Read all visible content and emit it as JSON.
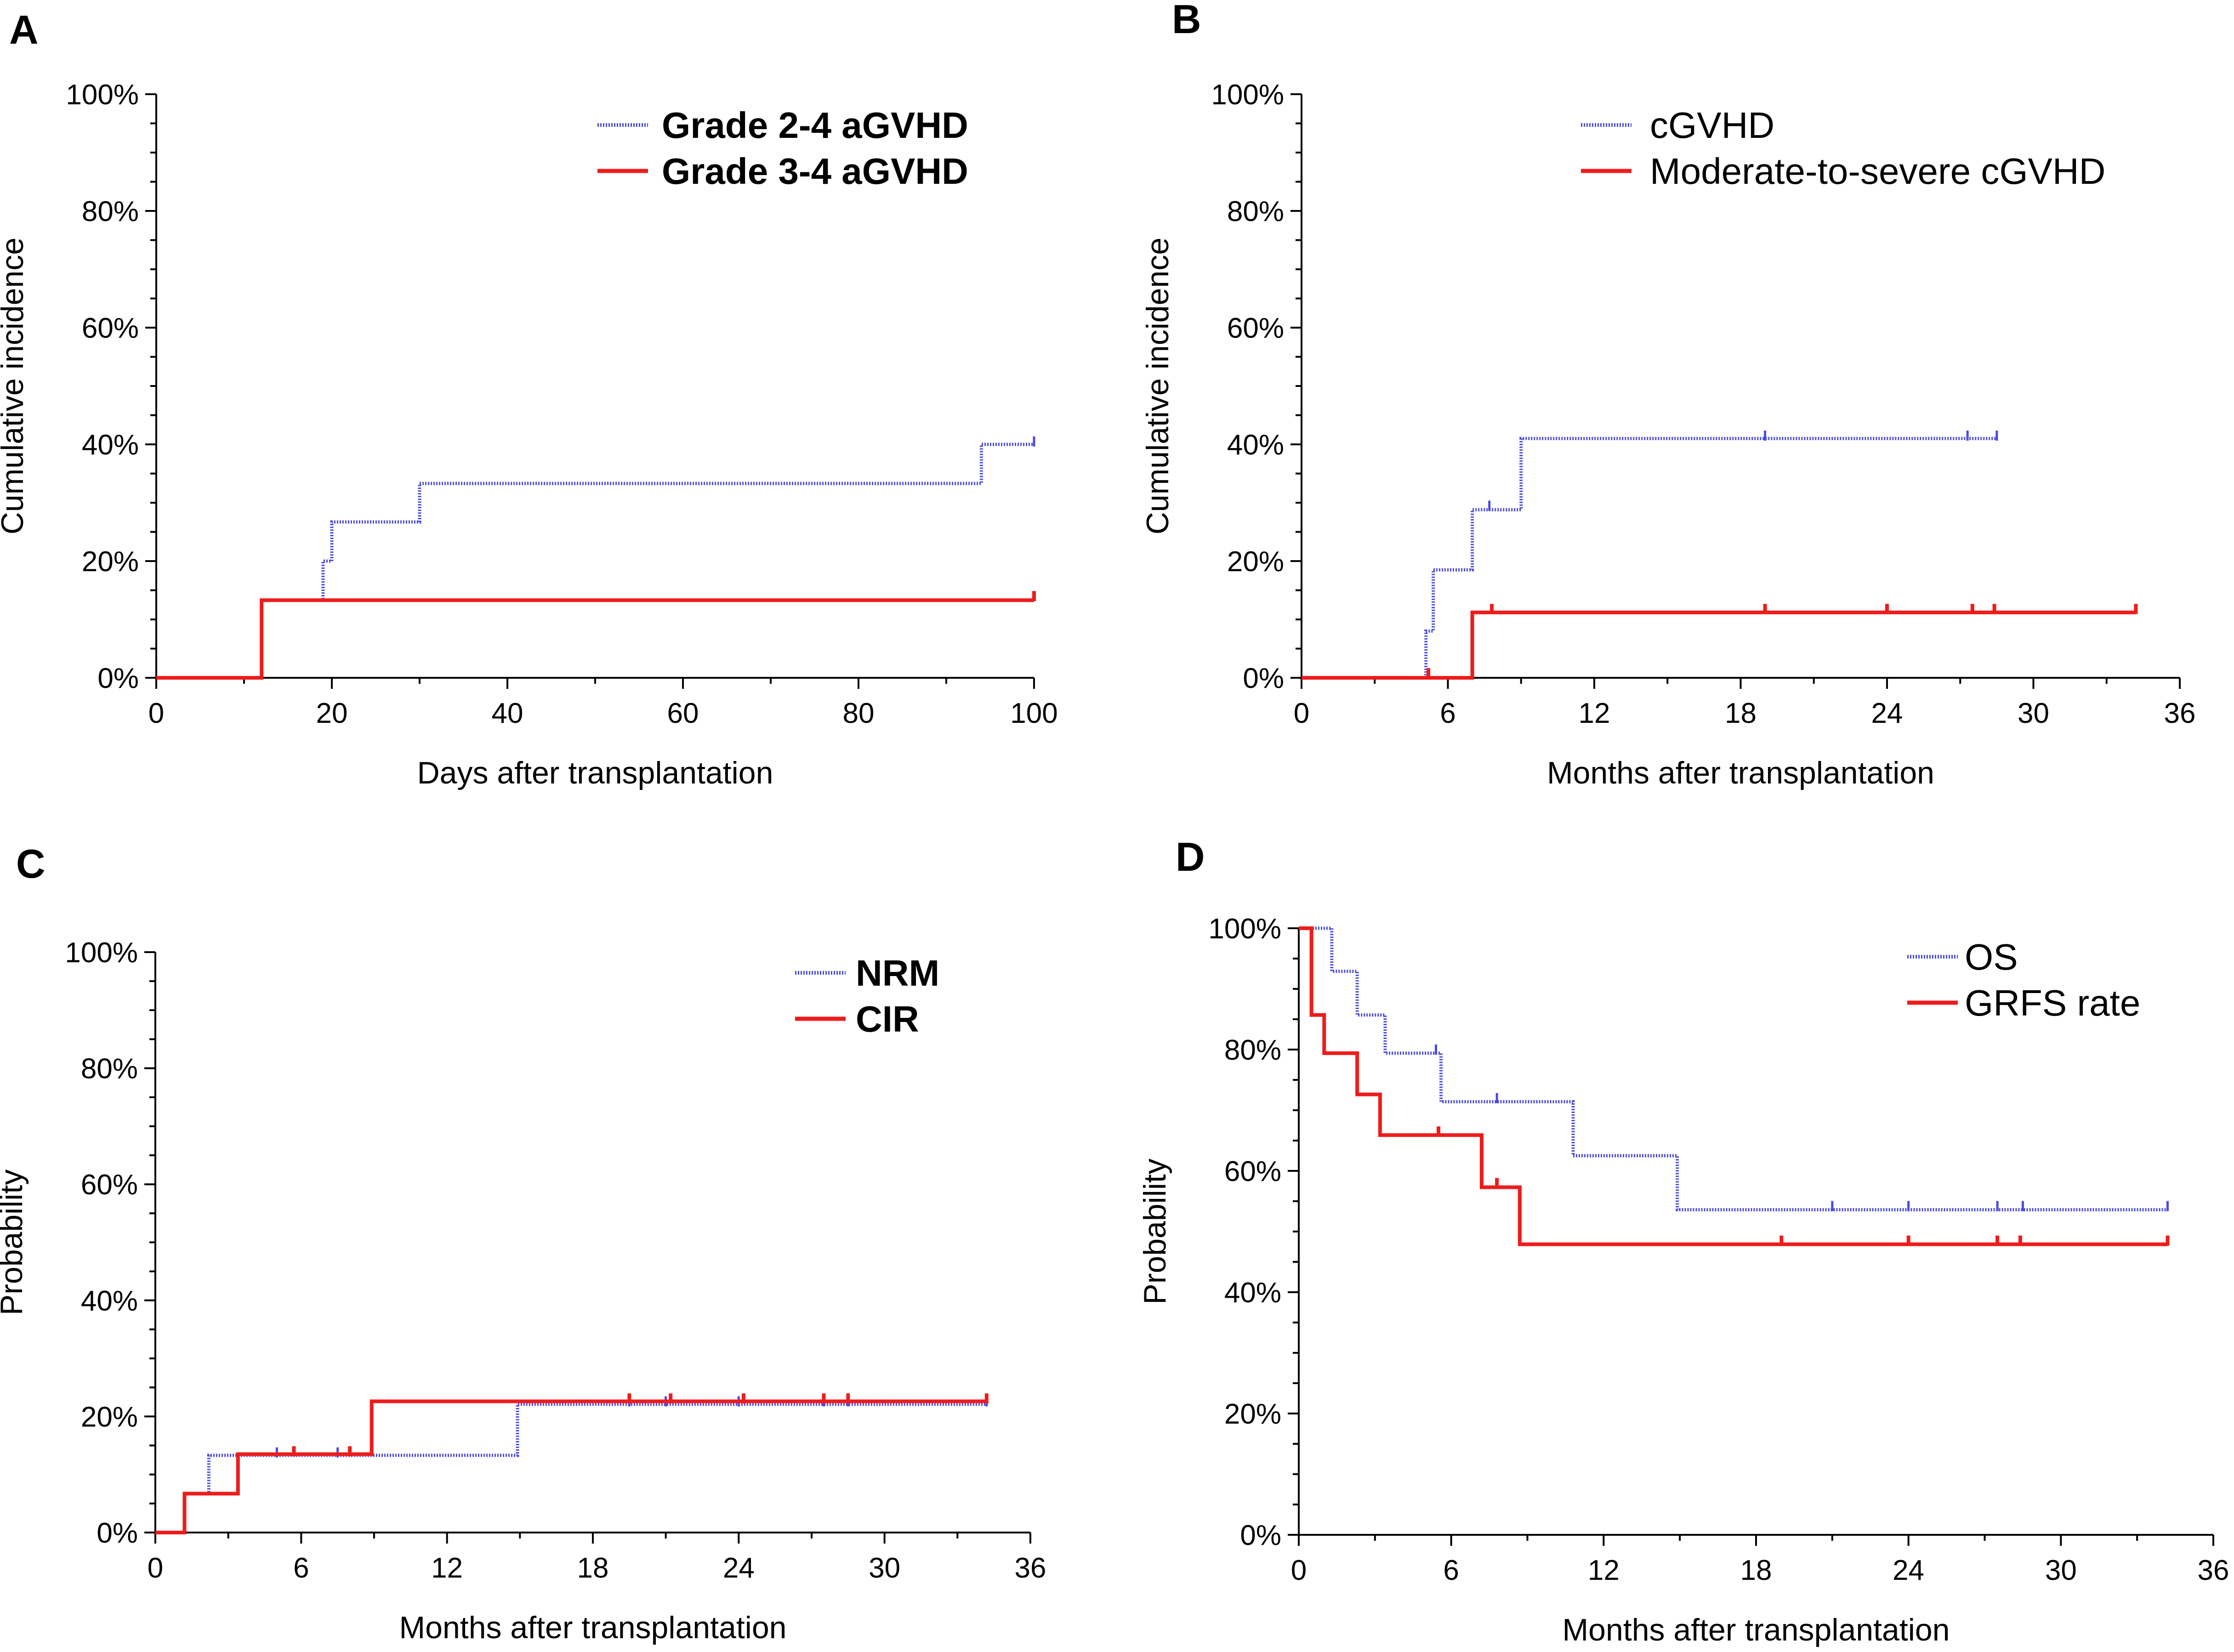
{
  "colors": {
    "blue": "#4a4ae0",
    "red": "#ee1c1c",
    "axis": "#000000"
  },
  "chart_data": [
    {
      "panel": "A",
      "type": "line",
      "step": true,
      "xlabel": "Days after transplantation",
      "ylabel": "Cumulative incidence",
      "xlim": [
        0,
        100
      ],
      "xticks": [
        0,
        20,
        40,
        60,
        80,
        100
      ],
      "xtick_labels": [
        "0",
        "20",
        "40",
        "60",
        "80",
        "100"
      ],
      "ylim": [
        0,
        100
      ],
      "yticks": [
        0,
        20,
        40,
        60,
        80,
        100
      ],
      "ytick_labels": [
        "0%",
        "20%",
        "40%",
        "60%",
        "80%",
        "100%"
      ],
      "legend_bold": true,
      "series": [
        {
          "name": "Grade 2-4 aGVHD",
          "style": "dotted",
          "color": "blue",
          "points": [
            [
              0,
              0
            ],
            [
              12,
              13.3
            ],
            [
              19,
              20
            ],
            [
              20,
              26.7
            ],
            [
              30,
              33.3
            ],
            [
              94,
              40
            ],
            [
              100,
              40
            ]
          ],
          "censor": [
            [
              100,
              40.5
            ]
          ]
        },
        {
          "name": "Grade 3-4 aGVHD",
          "style": "solid",
          "color": "red",
          "points": [
            [
              0,
              0
            ],
            [
              12,
              13.3
            ],
            [
              100,
              13.3
            ]
          ],
          "censor": [
            [
              100,
              14
            ]
          ]
        }
      ]
    },
    {
      "panel": "B",
      "type": "line",
      "step": true,
      "xlabel": "Months after transplantation",
      "ylabel": "Cumulative incidence",
      "xlim": [
        0,
        36
      ],
      "xticks": [
        0,
        6,
        12,
        18,
        24,
        30,
        36
      ],
      "xtick_labels": [
        "0",
        "6",
        "12",
        "18",
        "24",
        "30",
        "36"
      ],
      "ylim": [
        0,
        100
      ],
      "yticks": [
        0,
        20,
        40,
        60,
        80,
        100
      ],
      "ytick_labels": [
        "0%",
        "20%",
        "40%",
        "60%",
        "80%",
        "100%"
      ],
      "legend_bold": false,
      "series": [
        {
          "name": "cGVHD",
          "style": "dotted",
          "color": "blue",
          "points": [
            [
              0,
              0
            ],
            [
              5.1,
              8
            ],
            [
              5.4,
              18.5
            ],
            [
              7.0,
              28.8
            ],
            [
              9.0,
              41
            ],
            [
              28.5,
              41
            ]
          ],
          "censor": [
            [
              7.7,
              29.5
            ],
            [
              19,
              41.5
            ],
            [
              27.3,
              41.5
            ],
            [
              28.5,
              41.5
            ]
          ]
        },
        {
          "name": "Moderate-to-severe cGVHD",
          "style": "solid",
          "color": "red",
          "points": [
            [
              0,
              0
            ],
            [
              7.0,
              11.2
            ],
            [
              34.2,
              11.2
            ]
          ],
          "censor": [
            [
              5.2,
              0.8
            ],
            [
              7.8,
              11.8
            ],
            [
              19,
              11.8
            ],
            [
              24,
              11.8
            ],
            [
              27.5,
              11.8
            ],
            [
              28.4,
              11.8
            ],
            [
              34.2,
              11.8
            ]
          ]
        }
      ]
    },
    {
      "panel": "C",
      "type": "line",
      "step": true,
      "xlabel": "Months after transplantation",
      "ylabel": "Probability",
      "xlim": [
        0,
        36
      ],
      "xticks": [
        0,
        6,
        12,
        18,
        24,
        30,
        36
      ],
      "xtick_labels": [
        "0",
        "6",
        "12",
        "18",
        "24",
        "30",
        "36"
      ],
      "ylim": [
        0,
        100
      ],
      "yticks": [
        0,
        20,
        40,
        60,
        80,
        100
      ],
      "ytick_labels": [
        "0%",
        "20%",
        "40%",
        "60%",
        "80%",
        "100%"
      ],
      "legend_bold": true,
      "series": [
        {
          "name": "NRM",
          "style": "dotted",
          "color": "blue",
          "points": [
            [
              0,
              0
            ],
            [
              1.2,
              6.7
            ],
            [
              2.2,
              13.3
            ],
            [
              14.9,
              22.1
            ],
            [
              34.2,
              22.1
            ]
          ],
          "censor": [
            [
              5,
              13.8
            ],
            [
              7.5,
              13.8
            ],
            [
              19.5,
              22.6
            ],
            [
              21,
              22.6
            ],
            [
              24,
              22.6
            ],
            [
              27.5,
              22.6
            ],
            [
              28.5,
              22.6
            ],
            [
              34.2,
              22.6
            ]
          ]
        },
        {
          "name": "CIR",
          "style": "solid",
          "color": "red",
          "points": [
            [
              0,
              0
            ],
            [
              1.2,
              6.7
            ],
            [
              3.4,
              13.5
            ],
            [
              8.9,
              22.6
            ],
            [
              34.2,
              22.6
            ]
          ],
          "censor": [
            [
              5.7,
              14
            ],
            [
              8,
              14
            ],
            [
              19.5,
              23.1
            ],
            [
              21.2,
              23.1
            ],
            [
              24.2,
              23.1
            ],
            [
              27.5,
              23.1
            ],
            [
              28.5,
              23.1
            ],
            [
              34.2,
              23.1
            ]
          ]
        }
      ]
    },
    {
      "panel": "D",
      "type": "line",
      "step": true,
      "xlabel": "Months after transplantation",
      "ylabel": "Probability",
      "xlim": [
        0,
        36
      ],
      "xticks": [
        0,
        6,
        12,
        18,
        24,
        30,
        36
      ],
      "xtick_labels": [
        "0",
        "6",
        "12",
        "18",
        "24",
        "30",
        "36"
      ],
      "ylim": [
        0,
        100
      ],
      "yticks": [
        0,
        20,
        40,
        60,
        80,
        100
      ],
      "ytick_labels": [
        "0%",
        "20%",
        "40%",
        "60%",
        "80%",
        "100%"
      ],
      "legend_bold": false,
      "series": [
        {
          "name": "OS",
          "style": "dotted",
          "color": "blue",
          "points": [
            [
              0,
              100
            ],
            [
              1.3,
              92.9
            ],
            [
              2.3,
              85.7
            ],
            [
              3.4,
              79.4
            ],
            [
              5.6,
              71.4
            ],
            [
              10.8,
              62.5
            ],
            [
              14.9,
              53.6
            ],
            [
              34.2,
              53.6
            ]
          ],
          "censor": [
            [
              5.4,
              80
            ],
            [
              7.8,
              72
            ],
            [
              21,
              54.2
            ],
            [
              24,
              54.2
            ],
            [
              27.5,
              54.2
            ],
            [
              28.5,
              54.2
            ],
            [
              34.2,
              54.2
            ]
          ]
        },
        {
          "name": "GRFS rate",
          "style": "solid",
          "color": "red",
          "points": [
            [
              0,
              100
            ],
            [
              0.5,
              85.7
            ],
            [
              1.0,
              79.4
            ],
            [
              2.3,
              72.6
            ],
            [
              3.2,
              65.9
            ],
            [
              7.2,
              57.3
            ],
            [
              8.7,
              47.9
            ],
            [
              34.2,
              47.9
            ]
          ],
          "censor": [
            [
              5.5,
              66.5
            ],
            [
              7.8,
              58
            ],
            [
              19,
              48.5
            ],
            [
              24,
              48.5
            ],
            [
              27.5,
              48.5
            ],
            [
              28.4,
              48.5
            ],
            [
              34.2,
              48.5
            ]
          ]
        }
      ]
    }
  ]
}
